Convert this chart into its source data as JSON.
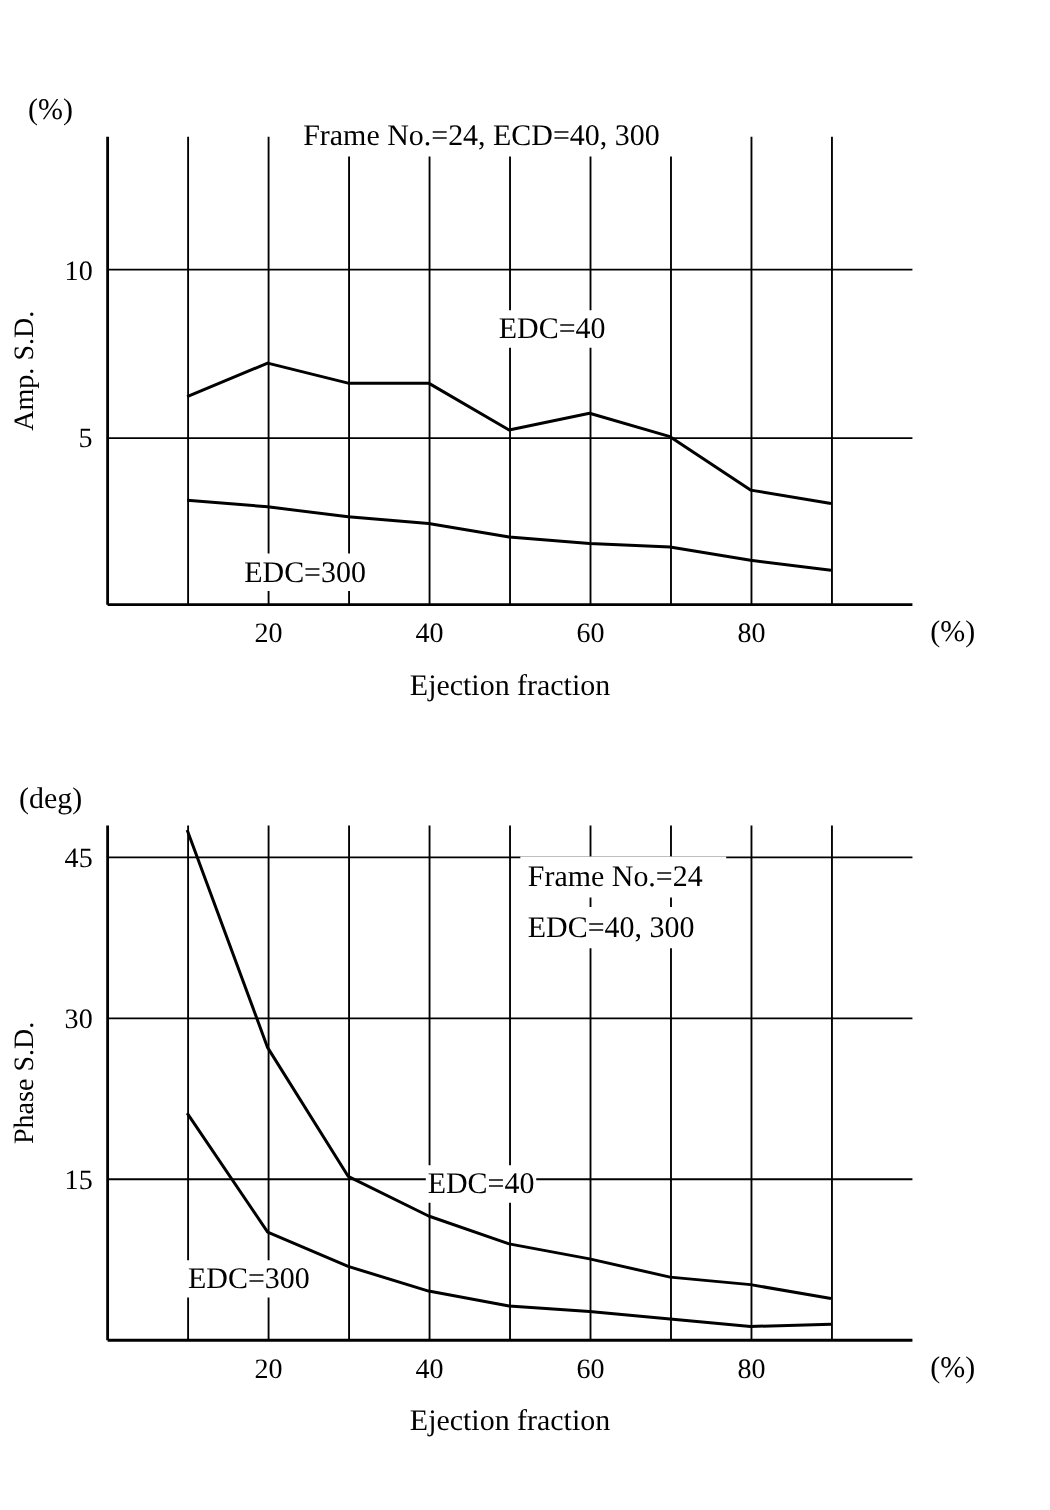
{
  "chart_data": [
    {
      "type": "line",
      "xlabel": "Ejection fraction",
      "ylabel": "Amp. S.D.",
      "annotations": [
        "(%)",
        "(%)",
        "Frame No.=24, ECD=40, 300"
      ],
      "x": [
        10,
        20,
        30,
        40,
        50,
        60,
        70,
        80,
        90
      ],
      "series": [
        {
          "name": "EDC=40",
          "color": "#000000",
          "values": [
            6.2,
            7.2,
            6.6,
            6.6,
            5.2,
            5.7,
            5.0,
            3.4,
            3.0
          ]
        },
        {
          "name": "EDC=300",
          "color": "#000000",
          "values": [
            3.1,
            2.9,
            2.6,
            2.4,
            2.0,
            1.8,
            1.7,
            1.3,
            1.0
          ]
        }
      ],
      "xlim": [
        0,
        100
      ],
      "xticks": [
        {
          "value": 10,
          "label": null
        },
        20,
        {
          "value": 30,
          "label": null
        },
        40,
        {
          "value": 50,
          "label": null
        },
        60,
        {
          "value": 70,
          "label": null
        },
        80,
        {
          "value": 90,
          "label": null
        }
      ],
      "ylim": [
        0,
        14
      ],
      "yticks": [
        5,
        10
      ],
      "grid": true,
      "legend": false,
      "marker": "none",
      "line_style": "solid"
    },
    {
      "type": "line",
      "xlabel": "Ejection fraction",
      "ylabel": "Phase S.D.",
      "annotations": [
        "(deg)",
        "(%)",
        "Frame No.=24",
        "EDC=40, 300"
      ],
      "x": [
        10,
        20,
        30,
        40,
        50,
        60,
        70,
        80,
        90
      ],
      "series": [
        {
          "name": "EDC=40",
          "color": "#000000",
          "values": [
            47.5,
            27.2,
            15.2,
            11.5,
            8.9,
            7.5,
            5.8,
            5.1,
            3.8
          ]
        },
        {
          "name": "EDC=300",
          "color": "#000000",
          "values": [
            21.1,
            10.0,
            6.8,
            4.5,
            3.1,
            2.6,
            1.9,
            1.2,
            1.4
          ]
        }
      ],
      "xlim": [
        0,
        100
      ],
      "xticks": [
        {
          "value": 10,
          "label": null
        },
        20,
        {
          "value": 30,
          "label": null
        },
        40,
        {
          "value": 50,
          "label": null
        },
        60,
        {
          "value": 70,
          "label": null
        },
        80,
        {
          "value": 90,
          "label": null
        }
      ],
      "ylim": [
        0,
        48
      ],
      "yticks": [
        15,
        30,
        45
      ],
      "grid": true,
      "legend": false,
      "marker": "none",
      "line_style": "solid"
    }
  ]
}
